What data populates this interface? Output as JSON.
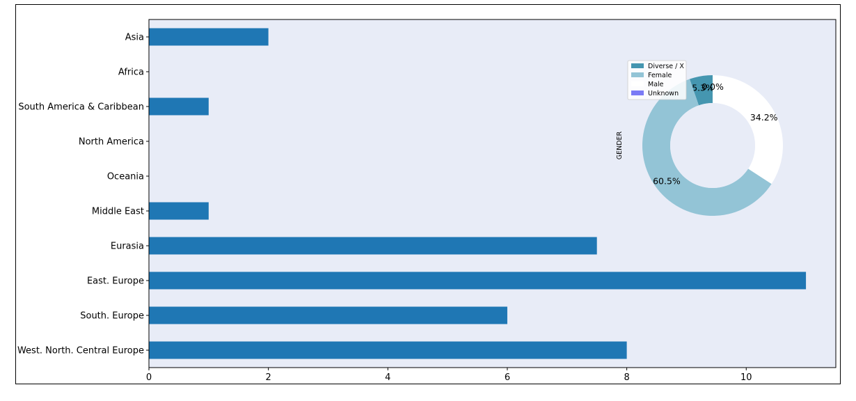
{
  "chart_data": [
    {
      "type": "bar",
      "orientation": "horizontal",
      "categories": [
        "Asia",
        "Africa",
        "South America & Caribbean",
        "North America",
        "Oceania",
        "Middle East",
        "Eurasia",
        "East. Europe",
        "South. Europe",
        "West. North. Central Europe"
      ],
      "values": [
        2,
        0,
        1,
        0,
        0,
        1,
        7.5,
        11,
        6,
        8
      ],
      "xlim": [
        0,
        11.5
      ],
      "xticks": [
        0,
        2,
        4,
        6,
        8,
        10
      ],
      "xtick_labels": [
        "0",
        "2",
        "4",
        "6",
        "8",
        "10"
      ],
      "bar_color": "#1f77b4",
      "background": "#e8ecf7",
      "grid": false
    },
    {
      "type": "pie",
      "donut": true,
      "ylabel": "GENDER",
      "labels": [
        "Diverse / X",
        "Female",
        "Male",
        "Unknown"
      ],
      "values": [
        5.3,
        60.5,
        34.2,
        0.0
      ],
      "value_labels": [
        "5.3%",
        "60.5%",
        "34.2%",
        "0.0%"
      ],
      "colors": [
        "#4596b0",
        "#93c4d6",
        "#ffffff",
        "#7b7bf5"
      ],
      "legend_position": "upper-left"
    }
  ]
}
